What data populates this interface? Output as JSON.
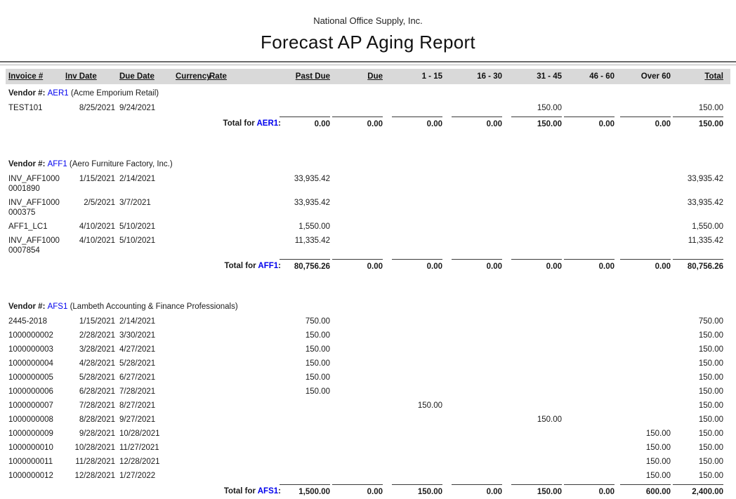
{
  "report": {
    "company": "National Office Supply, Inc.",
    "title": "Forecast AP Aging Report"
  },
  "labels": {
    "vendor_prefix": "Vendor #:",
    "total_prefix": "Total for"
  },
  "colors": {
    "vendor_link_blue": "#0000ee",
    "header_bar_gray": "#d9d9d9"
  },
  "columns": [
    "Invoice #",
    "Inv Date",
    "Due Date",
    "Currency",
    "Rate",
    "Past Due",
    "Due",
    "1 - 15",
    "16 - 30",
    "31 - 45",
    "46 - 60",
    "Over 60",
    "Total"
  ],
  "vendors": [
    {
      "code": "AER1",
      "name": "(Acme Emporium Retail)",
      "rows": [
        {
          "invoice_lines": [
            "TEST101"
          ],
          "inv_date": "8/25/2021",
          "due_date": "9/24/2021",
          "currency": "",
          "rate": "",
          "past_due": "",
          "due": "",
          "b1_15": "",
          "b16_30": "",
          "b31_45": "150.00",
          "b46_60": "",
          "over_60": "",
          "total": "150.00"
        }
      ],
      "totals": {
        "past_due": "0.00",
        "due": "0.00",
        "b1_15": "0.00",
        "b16_30": "0.00",
        "b31_45": "150.00",
        "b46_60": "0.00",
        "over_60": "0.00",
        "total": "150.00"
      }
    },
    {
      "code": "AFF1",
      "name": "(Aero Furniture Factory, Inc.)",
      "rows": [
        {
          "invoice_lines": [
            "INV_AFF1000",
            "0001890"
          ],
          "inv_date": "1/15/2021",
          "due_date": "2/14/2021",
          "currency": "",
          "rate": "",
          "past_due": "33,935.42",
          "due": "",
          "b1_15": "",
          "b16_30": "",
          "b31_45": "",
          "b46_60": "",
          "over_60": "",
          "total": "33,935.42"
        },
        {
          "invoice_lines": [
            "INV_AFF1000",
            "000375"
          ],
          "inv_date": "2/5/2021",
          "due_date": "3/7/2021",
          "currency": "",
          "rate": "",
          "past_due": "33,935.42",
          "due": "",
          "b1_15": "",
          "b16_30": "",
          "b31_45": "",
          "b46_60": "",
          "over_60": "",
          "total": "33,935.42"
        },
        {
          "invoice_lines": [
            "AFF1_LC1"
          ],
          "inv_date": "4/10/2021",
          "due_date": "5/10/2021",
          "currency": "",
          "rate": "",
          "past_due": "1,550.00",
          "due": "",
          "b1_15": "",
          "b16_30": "",
          "b31_45": "",
          "b46_60": "",
          "over_60": "",
          "total": "1,550.00"
        },
        {
          "invoice_lines": [
            "INV_AFF1000",
            "0007854"
          ],
          "inv_date": "4/10/2021",
          "due_date": "5/10/2021",
          "currency": "",
          "rate": "",
          "past_due": "11,335.42",
          "due": "",
          "b1_15": "",
          "b16_30": "",
          "b31_45": "",
          "b46_60": "",
          "over_60": "",
          "total": "11,335.42"
        }
      ],
      "totals": {
        "past_due": "80,756.26",
        "due": "0.00",
        "b1_15": "0.00",
        "b16_30": "0.00",
        "b31_45": "0.00",
        "b46_60": "0.00",
        "over_60": "0.00",
        "total": "80,756.26"
      }
    },
    {
      "code": "AFS1",
      "name": "(Lambeth Accounting & Finance Professionals)",
      "rows": [
        {
          "invoice_lines": [
            "2445-2018"
          ],
          "inv_date": "1/15/2021",
          "due_date": "2/14/2021",
          "currency": "",
          "rate": "",
          "past_due": "750.00",
          "due": "",
          "b1_15": "",
          "b16_30": "",
          "b31_45": "",
          "b46_60": "",
          "over_60": "",
          "total": "750.00"
        },
        {
          "invoice_lines": [
            "1000000002"
          ],
          "inv_date": "2/28/2021",
          "due_date": "3/30/2021",
          "currency": "",
          "rate": "",
          "past_due": "150.00",
          "due": "",
          "b1_15": "",
          "b16_30": "",
          "b31_45": "",
          "b46_60": "",
          "over_60": "",
          "total": "150.00"
        },
        {
          "invoice_lines": [
            "1000000003"
          ],
          "inv_date": "3/28/2021",
          "due_date": "4/27/2021",
          "currency": "",
          "rate": "",
          "past_due": "150.00",
          "due": "",
          "b1_15": "",
          "b16_30": "",
          "b31_45": "",
          "b46_60": "",
          "over_60": "",
          "total": "150.00"
        },
        {
          "invoice_lines": [
            "1000000004"
          ],
          "inv_date": "4/28/2021",
          "due_date": "5/28/2021",
          "currency": "",
          "rate": "",
          "past_due": "150.00",
          "due": "",
          "b1_15": "",
          "b16_30": "",
          "b31_45": "",
          "b46_60": "",
          "over_60": "",
          "total": "150.00"
        },
        {
          "invoice_lines": [
            "1000000005"
          ],
          "inv_date": "5/28/2021",
          "due_date": "6/27/2021",
          "currency": "",
          "rate": "",
          "past_due": "150.00",
          "due": "",
          "b1_15": "",
          "b16_30": "",
          "b31_45": "",
          "b46_60": "",
          "over_60": "",
          "total": "150.00"
        },
        {
          "invoice_lines": [
            "1000000006"
          ],
          "inv_date": "6/28/2021",
          "due_date": "7/28/2021",
          "currency": "",
          "rate": "",
          "past_due": "150.00",
          "due": "",
          "b1_15": "",
          "b16_30": "",
          "b31_45": "",
          "b46_60": "",
          "over_60": "",
          "total": "150.00"
        },
        {
          "invoice_lines": [
            "1000000007"
          ],
          "inv_date": "7/28/2021",
          "due_date": "8/27/2021",
          "currency": "",
          "rate": "",
          "past_due": "",
          "due": "",
          "b1_15": "150.00",
          "b16_30": "",
          "b31_45": "",
          "b46_60": "",
          "over_60": "",
          "total": "150.00"
        },
        {
          "invoice_lines": [
            "1000000008"
          ],
          "inv_date": "8/28/2021",
          "due_date": "9/27/2021",
          "currency": "",
          "rate": "",
          "past_due": "",
          "due": "",
          "b1_15": "",
          "b16_30": "",
          "b31_45": "150.00",
          "b46_60": "",
          "over_60": "",
          "total": "150.00"
        },
        {
          "invoice_lines": [
            "1000000009"
          ],
          "inv_date": "9/28/2021",
          "due_date": "10/28/2021",
          "currency": "",
          "rate": "",
          "past_due": "",
          "due": "",
          "b1_15": "",
          "b16_30": "",
          "b31_45": "",
          "b46_60": "",
          "over_60": "150.00",
          "total": "150.00"
        },
        {
          "invoice_lines": [
            "1000000010"
          ],
          "inv_date": "10/28/2021",
          "due_date": "11/27/2021",
          "currency": "",
          "rate": "",
          "past_due": "",
          "due": "",
          "b1_15": "",
          "b16_30": "",
          "b31_45": "",
          "b46_60": "",
          "over_60": "150.00",
          "total": "150.00"
        },
        {
          "invoice_lines": [
            "1000000011"
          ],
          "inv_date": "11/28/2021",
          "due_date": "12/28/2021",
          "currency": "",
          "rate": "",
          "past_due": "",
          "due": "",
          "b1_15": "",
          "b16_30": "",
          "b31_45": "",
          "b46_60": "",
          "over_60": "150.00",
          "total": "150.00"
        },
        {
          "invoice_lines": [
            "1000000012"
          ],
          "inv_date": "12/28/2021",
          "due_date": "1/27/2022",
          "currency": "",
          "rate": "",
          "past_due": "",
          "due": "",
          "b1_15": "",
          "b16_30": "",
          "b31_45": "",
          "b46_60": "",
          "over_60": "150.00",
          "total": "150.00"
        }
      ],
      "totals": {
        "past_due": "1,500.00",
        "due": "0.00",
        "b1_15": "150.00",
        "b16_30": "0.00",
        "b31_45": "150.00",
        "b46_60": "0.00",
        "over_60": "600.00",
        "total": "2,400.00"
      }
    }
  ]
}
